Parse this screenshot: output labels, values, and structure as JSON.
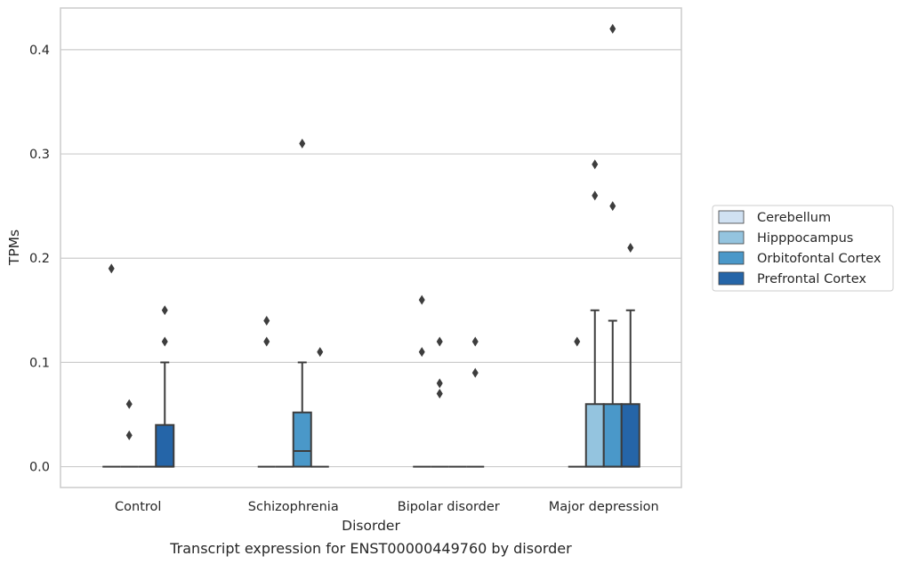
{
  "chart_data": {
    "type": "box",
    "title": "",
    "caption": "Transcript expression for ENST00000449760 by disorder",
    "xlabel": "Disorder",
    "ylabel": "TPMs",
    "ylim": [
      -0.02,
      0.44
    ],
    "yticks": [
      0.0,
      0.1,
      0.2,
      0.3,
      0.4
    ],
    "ytick_labels": [
      "0.0",
      "0.1",
      "0.2",
      "0.3",
      "0.4"
    ],
    "grid": "horizontal",
    "legend_position": "right",
    "categories": [
      "Control",
      "Schizophrenia",
      "Bipolar disorder",
      "Major depression"
    ],
    "series": [
      {
        "name": "Cerebellum",
        "color": "#d0e1f2",
        "boxes": [
          {
            "q1": 0,
            "median": 0,
            "q3": 0,
            "whislo": 0,
            "whishi": 0,
            "fliers": [
              0.19
            ]
          },
          {
            "q1": 0,
            "median": 0,
            "q3": 0,
            "whislo": 0,
            "whishi": 0,
            "fliers": [
              0.14,
              0.12
            ]
          },
          {
            "q1": 0,
            "median": 0,
            "q3": 0,
            "whislo": 0,
            "whishi": 0,
            "fliers": [
              0.16,
              0.11
            ]
          },
          {
            "q1": 0,
            "median": 0,
            "q3": 0,
            "whislo": 0,
            "whishi": 0,
            "fliers": [
              0.12
            ]
          }
        ]
      },
      {
        "name": "Hipppocampus",
        "color": "#94c4df",
        "boxes": [
          {
            "q1": 0,
            "median": 0,
            "q3": 0,
            "whislo": 0,
            "whishi": 0,
            "fliers": [
              0.06,
              0.03
            ]
          },
          {
            "q1": 0,
            "median": 0,
            "q3": 0,
            "whislo": 0,
            "whishi": 0,
            "fliers": []
          },
          {
            "q1": 0,
            "median": 0,
            "q3": 0,
            "whislo": 0,
            "whishi": 0,
            "fliers": [
              0.12,
              0.08,
              0.07
            ]
          },
          {
            "q1": 0,
            "median": 0,
            "q3": 0.06,
            "whislo": 0,
            "whishi": 0.15,
            "fliers": [
              0.29,
              0.26
            ]
          }
        ]
      },
      {
        "name": "Orbitofontal Cortex",
        "color": "#4a98c9",
        "boxes": [
          {
            "q1": 0,
            "median": 0,
            "q3": 0,
            "whislo": 0,
            "whishi": 0,
            "fliers": []
          },
          {
            "q1": 0,
            "median": 0.015,
            "q3": 0.052,
            "whislo": 0,
            "whishi": 0.1,
            "fliers": [
              0.31
            ]
          },
          {
            "q1": 0,
            "median": 0,
            "q3": 0,
            "whislo": 0,
            "whishi": 0,
            "fliers": []
          },
          {
            "q1": 0,
            "median": 0,
            "q3": 0.06,
            "whislo": 0,
            "whishi": 0.14,
            "fliers": [
              0.42,
              0.25
            ]
          }
        ]
      },
      {
        "name": "Prefrontal Cortex",
        "color": "#2565a8",
        "boxes": [
          {
            "q1": 0,
            "median": 0,
            "q3": 0.04,
            "whislo": 0,
            "whishi": 0.1,
            "fliers": [
              0.15,
              0.12
            ]
          },
          {
            "q1": 0,
            "median": 0,
            "q3": 0,
            "whislo": 0,
            "whishi": 0,
            "fliers": [
              0.11
            ]
          },
          {
            "q1": 0,
            "median": 0,
            "q3": 0,
            "whislo": 0,
            "whishi": 0,
            "fliers": [
              0.12,
              0.09
            ]
          },
          {
            "q1": 0,
            "median": 0,
            "q3": 0.06,
            "whislo": 0,
            "whishi": 0.15,
            "fliers": [
              0.21
            ]
          }
        ]
      }
    ]
  }
}
